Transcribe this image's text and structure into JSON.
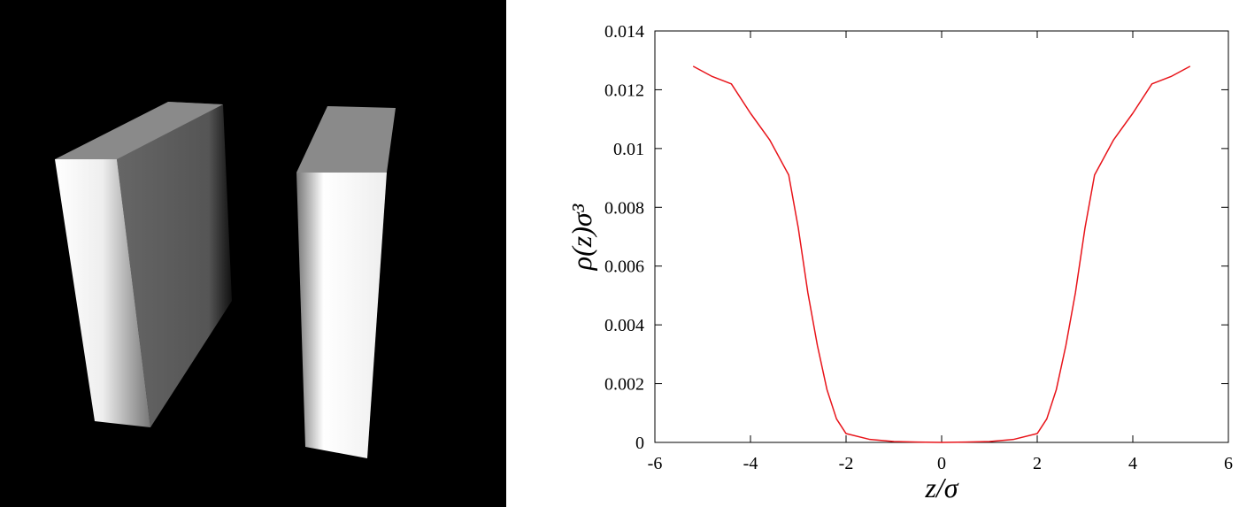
{
  "chart_data": {
    "type": "line",
    "xlabel": "z/σ",
    "ylabel": "ρ(z)σ³",
    "x": [
      -5.2,
      -4.8,
      -4.4,
      -4,
      -3.6,
      -3.2,
      -3,
      -2.8,
      -2.6,
      -2.4,
      -2.2,
      -2,
      -1.5,
      -1,
      -0.5,
      0,
      0.5,
      1,
      1.5,
      2,
      2.2,
      2.4,
      2.6,
      2.8,
      3,
      3.2,
      3.6,
      4,
      4.4,
      4.8,
      5.2
    ],
    "series": [
      {
        "color": "#e8141a",
        "values": [
          0.0128,
          0.01245,
          0.0122,
          0.0112,
          0.0103,
          0.0091,
          0.0073,
          0.0051,
          0.0033,
          0.0018,
          0.0008,
          0.0003,
          0.0001,
          3e-05,
          1e-05,
          0,
          1e-05,
          3e-05,
          0.0001,
          0.0003,
          0.0008,
          0.0018,
          0.0033,
          0.0051,
          0.0073,
          0.0091,
          0.0103,
          0.0112,
          0.0122,
          0.01245,
          0.0128
        ]
      }
    ],
    "xlim": [
      -6,
      6
    ],
    "xticks": [
      -6,
      -4,
      -2,
      0,
      2,
      4,
      6
    ],
    "ylim": [
      0,
      0.014
    ],
    "yticks": [
      0,
      0.002,
      0.004,
      0.006,
      0.008,
      0.01,
      0.012,
      0.014
    ]
  }
}
